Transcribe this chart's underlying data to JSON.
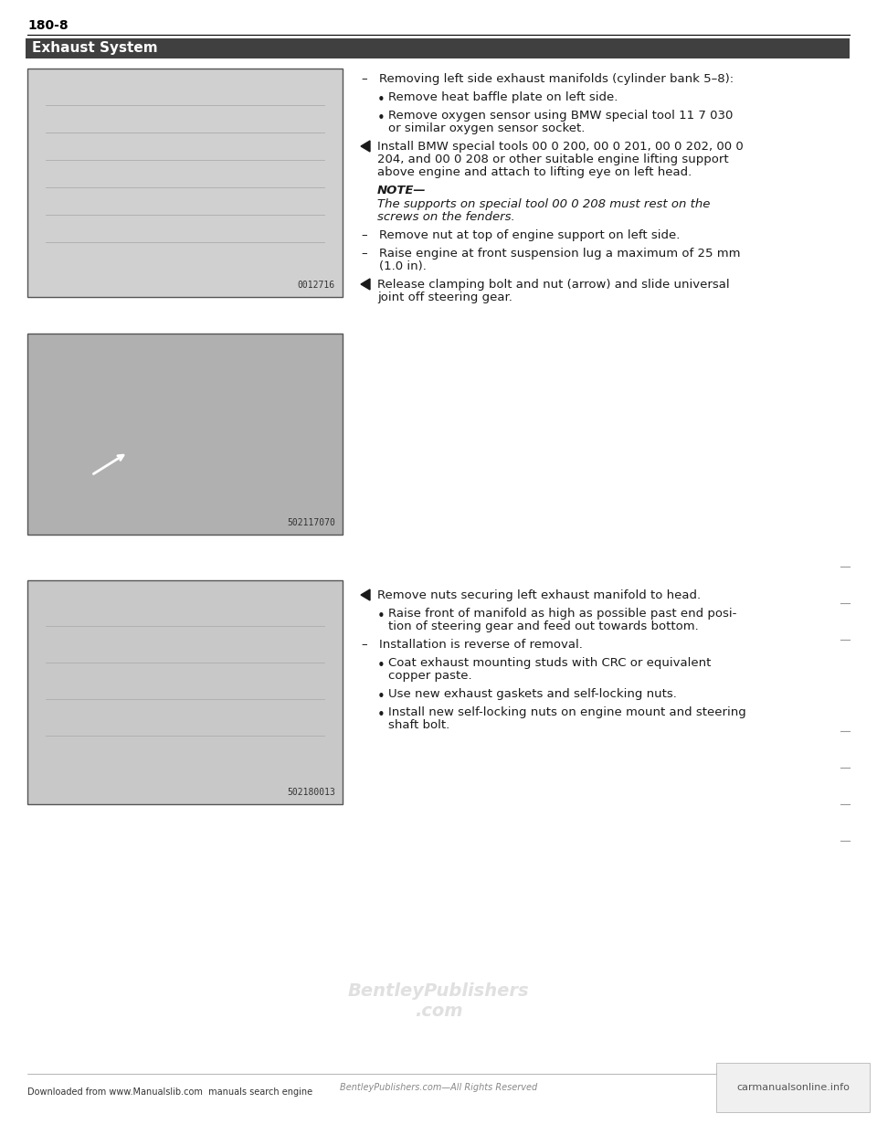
{
  "page_number": "180-8",
  "section_title": "Exhaust System",
  "background_color": "#ffffff",
  "header_bar_color": "#404040",
  "header_text_color": "#ffffff",
  "body_text_color": "#1a1a1a",
  "font_size_body": 9.5,
  "font_size_header": 11,
  "font_size_page_num": 10,
  "right_column_text": [
    {
      "type": "dash_item",
      "text": "Removing left side exhaust manifolds (cylinder bank 5–8):"
    },
    {
      "type": "bullet",
      "text": "Remove heat baffle plate on left side."
    },
    {
      "type": "bullet",
      "text": "Remove oxygen sensor using BMW special tool 11 7 030\nor similar oxygen sensor socket."
    },
    {
      "type": "arrow_item",
      "text": "Install BMW special tools 00 0 200, 00 0 201, 00 0 202, 00 0\n204, and 00 0 208 or other suitable engine lifting support\nabove engine and attach to lifting eye on left head."
    },
    {
      "type": "note_header",
      "text": "NOTE—"
    },
    {
      "type": "note_body",
      "text": "The supports on special tool 00 0 208 must rest on the\nscrews on the fenders."
    },
    {
      "type": "dash_item",
      "text": "Remove nut at top of engine support on left side."
    },
    {
      "type": "dash_item",
      "text": "Raise engine at front suspension lug a maximum of 25 mm\n(1.0 in)."
    },
    {
      "type": "arrow_item",
      "text": "Release clamping bolt and nut (arrow) and slide universal\njoint off steering gear."
    }
  ],
  "right_column_text_lower": [
    {
      "type": "arrow_item",
      "text": "Remove nuts securing left exhaust manifold to head."
    },
    {
      "type": "bullet",
      "text": "Raise front of manifold as high as possible past end posi-\ntion of steering gear and feed out towards bottom."
    },
    {
      "type": "dash_item",
      "text": "Installation is reverse of removal."
    },
    {
      "type": "bullet",
      "text": "Coat exhaust mounting studs with CRC or equivalent\ncopper paste."
    },
    {
      "type": "bullet",
      "text": "Use new exhaust gaskets and self-locking nuts."
    },
    {
      "type": "bullet",
      "text": "Install new self-locking nuts on engine mount and steering\nshaft bolt."
    }
  ],
  "image1_label": "0012716",
  "image2_label": "502117070",
  "image3_label": "502180013",
  "footer_left": "Downloaded from www.Manualslib.com  manuals search engine",
  "footer_center": "BentleyPublishers.com—All Rights Reserved",
  "footer_right": "carmanualsonline.info",
  "watermark": "BentleyPublishers\n.com"
}
